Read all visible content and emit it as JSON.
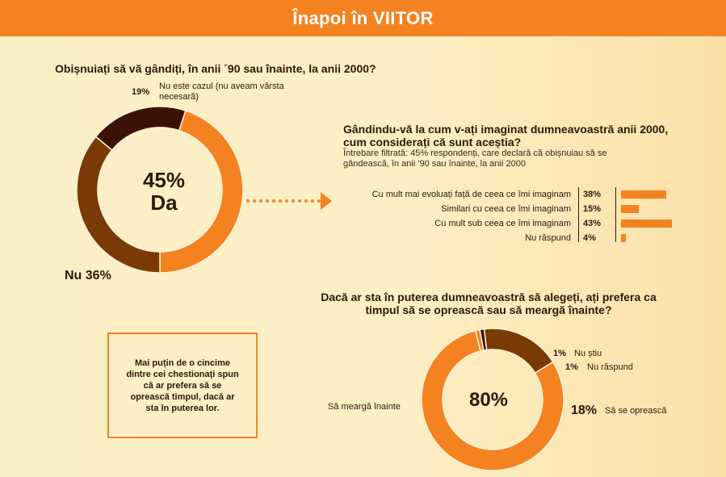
{
  "header": {
    "title": "Înapoi în VIITOR"
  },
  "colors": {
    "accent": "#f58220",
    "dark_brown": "#3d1206",
    "brown": "#7a3a06"
  },
  "chart_data": [
    {
      "type": "pie",
      "title": "Obișnuiați să vă gândiți, în anii ´90 sau înainte, la anii 2000?",
      "center": {
        "value": "45%",
        "label": "Da"
      },
      "slices": [
        {
          "name": "Da",
          "value": 45,
          "color": "#f58220"
        },
        {
          "name": "Nu",
          "value": 36,
          "color": "#7a3a06"
        },
        {
          "name": "Nu este cazul (nu aveam vârsta necesară)",
          "value": 19,
          "color": "#3d1206"
        }
      ],
      "labels": {
        "slice19_pct": "19%",
        "slice19_text": "Nu este cazul (nu aveam vârsta necesară)",
        "slice36": "Nu 36%"
      }
    },
    {
      "type": "bar",
      "title": "Gândindu-vă la cum v-ați imaginat dumneavoastră anii 2000, cum considerați că sunt aceștia?",
      "subtitle": "Întrebare filtrată: 45% respondenți, care declară că obișnuiau să se gândească, în anii '90 sau înainte, la anii 2000",
      "categories": [
        "Cu mult mai evoluați față de ceea ce îmi imaginam",
        "Similari cu ceea ce îmi imaginam",
        "Cu mult sub ceea ce îmi imaginam",
        "Nu răspund"
      ],
      "values": [
        38,
        15,
        43,
        4
      ],
      "value_labels": [
        "38%",
        "15%",
        "43%",
        "4%"
      ],
      "orientation": "horizontal"
    },
    {
      "type": "pie",
      "title": "Dacă ar sta în puterea dumneavoastră să alegeți, ați prefera ca timpul să se oprească sau să meargă înainte?",
      "center": {
        "value": "80%"
      },
      "slices": [
        {
          "name": "Să meargă înainte",
          "value": 80,
          "color": "#f58220"
        },
        {
          "name": "Nu știu",
          "value": 1,
          "color": "#f58220"
        },
        {
          "name": "Nu răspund",
          "value": 1,
          "color": "#3d1206"
        },
        {
          "name": "Să se oprească",
          "value": 18,
          "color": "#7a3a06"
        }
      ],
      "labels": {
        "merge": "Să meargă înainte",
        "stop_pct": "18%",
        "stop_text": "Să se oprească",
        "nustiu_pct": "1%",
        "nustiu_text": "Nu știu",
        "nuraspund_pct": "1%",
        "nuraspund_text": "Nu răspund"
      }
    }
  ],
  "note": {
    "text": "Mai puțin de o cincime dintre cei chestionați spun că ar prefera să se oprească timpul, dacă ar sta în puterea lor."
  }
}
